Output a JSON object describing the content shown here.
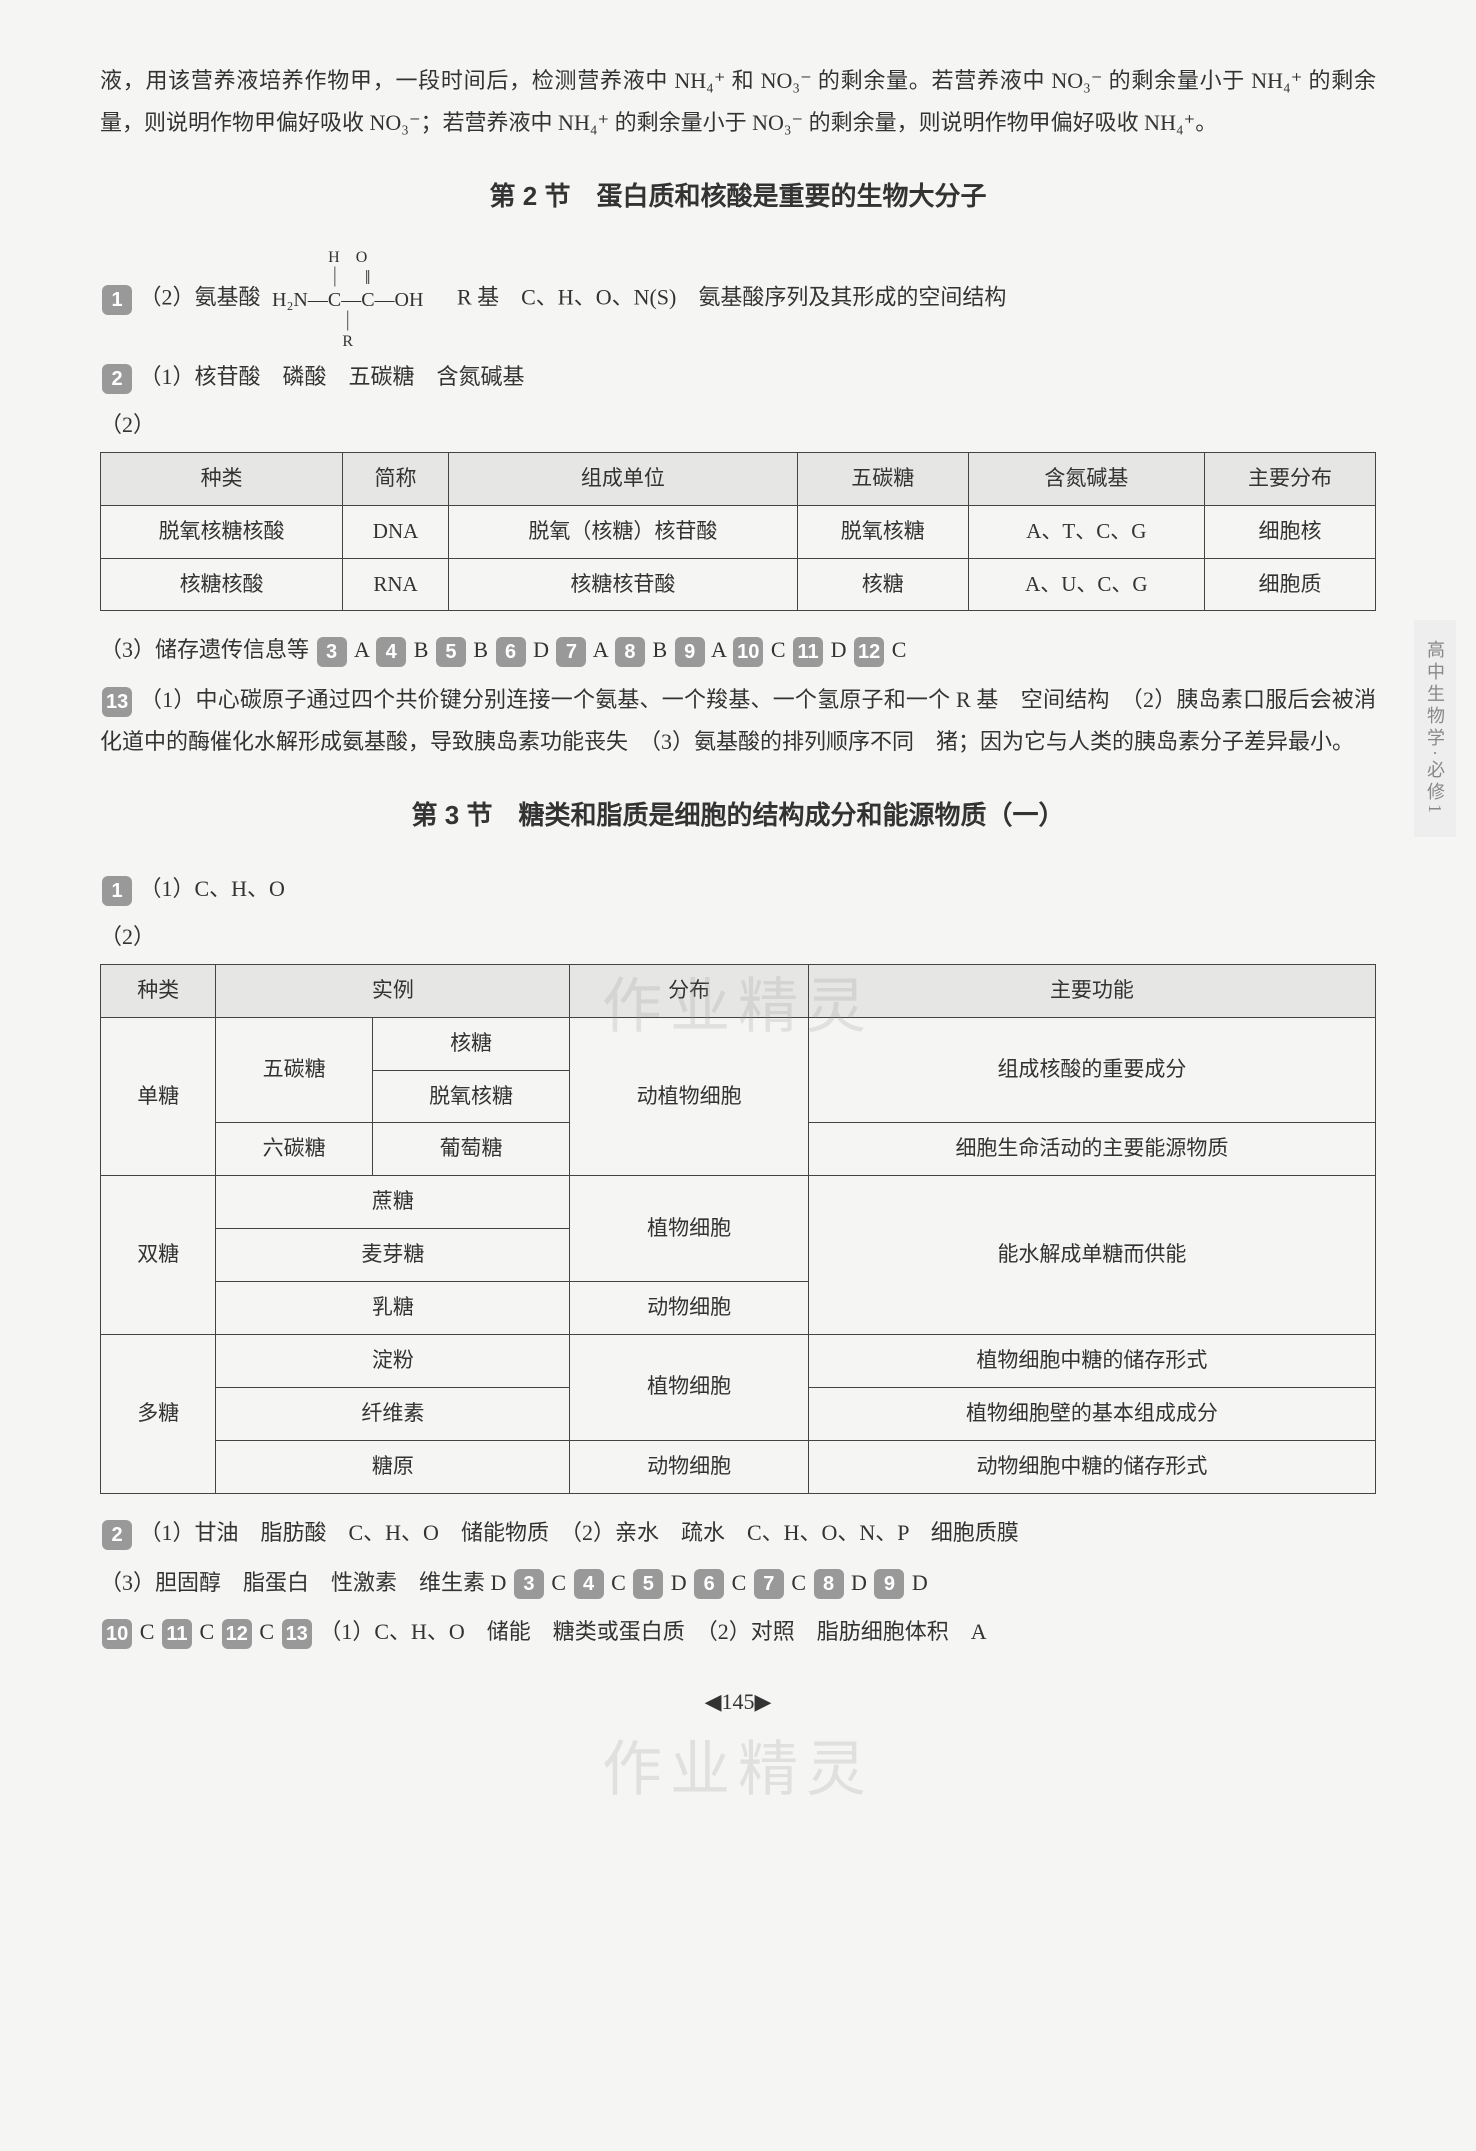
{
  "intro": "液，用该营养液培养作物甲，一段时间后，检测营养液中 NH₄⁺ 和 NO₃⁻ 的剩余量。若营养液中 NO₃⁻ 的剩余量小于 NH₄⁺ 的剩余量，则说明作物甲偏好吸收 NO₃⁻；若营养液中 NH₄⁺ 的剩余量小于 NO₃⁻ 的剩余量，则说明作物甲偏好吸收 NH₄⁺。",
  "sec2": {
    "title": "第 2 节　蛋白质和核酸是重要的生物大分子",
    "q1": {
      "badge": "1",
      "label": "（2）氨基酸",
      "form_top": "H　O",
      "form_mid": "H₂N—C—C—OH",
      "form_bot": "R",
      "after": "　R 基　C、H、O、N(S)　氨基酸序列及其形成的空间结构"
    },
    "q2_badge": "2",
    "q2_1": "（1）核苷酸　磷酸　五碳糖　含氮碱基",
    "q2_2_label": "（2）",
    "table1": {
      "headers": [
        "种类",
        "简称",
        "组成单位",
        "五碳糖",
        "含氮碱基",
        "主要分布"
      ],
      "rows": [
        [
          "脱氧核糖核酸",
          "DNA",
          "脱氧（核糖）核苷酸",
          "脱氧核糖",
          "A、T、C、G",
          "细胞核"
        ],
        [
          "核糖核酸",
          "RNA",
          "核糖核苷酸",
          "核糖",
          "A、U、C、G",
          "细胞质"
        ]
      ]
    },
    "q2_3": "（3）储存遗传信息等",
    "ans": [
      {
        "n": "3",
        "v": "A"
      },
      {
        "n": "4",
        "v": "B"
      },
      {
        "n": "5",
        "v": "B"
      },
      {
        "n": "6",
        "v": "D"
      },
      {
        "n": "7",
        "v": "A"
      },
      {
        "n": "8",
        "v": "B"
      },
      {
        "n": "9",
        "v": "A"
      },
      {
        "n": "10",
        "v": "C"
      },
      {
        "n": "11",
        "v": "D"
      },
      {
        "n": "12",
        "v": "C"
      }
    ],
    "q13_badge": "13",
    "q13": "（1）中心碳原子通过四个共价键分别连接一个氨基、一个羧基、一个氢原子和一个 R 基　空间结构　（2）胰岛素口服后会被消化道中的酶催化水解形成氨基酸，导致胰岛素功能丧失　（3）氨基酸的排列顺序不同　猪；因为它与人类的胰岛素分子差异最小。"
  },
  "sec3": {
    "title": "第 3 节　糖类和脂质是细胞的结构成分和能源物质（一）",
    "q1_badge": "1",
    "q1_1": "（1）C、H、O",
    "q1_2_label": "（2）",
    "table2": {
      "headers": [
        "种类",
        "实例",
        "",
        "分布",
        "主要功能"
      ],
      "r1": [
        "单糖",
        "五碳糖",
        "核糖",
        "动植物细胞",
        "组成核酸的重要成分"
      ],
      "r2": [
        "",
        "",
        "脱氧核糖",
        "",
        ""
      ],
      "r3": [
        "",
        "六碳糖",
        "葡萄糖",
        "",
        "细胞生命活动的主要能源物质"
      ],
      "r4": [
        "双糖",
        "蔗糖",
        "",
        "植物细胞",
        "能水解成单糖而供能"
      ],
      "r5": [
        "",
        "麦芽糖",
        "",
        "",
        ""
      ],
      "r6": [
        "",
        "乳糖",
        "",
        "动物细胞",
        ""
      ],
      "r7": [
        "多糖",
        "淀粉",
        "",
        "植物细胞",
        "植物细胞中糖的储存形式"
      ],
      "r8": [
        "",
        "纤维素",
        "",
        "",
        "植物细胞壁的基本组成成分"
      ],
      "r9": [
        "",
        "糖原",
        "",
        "动物细胞",
        "动物细胞中糖的储存形式"
      ]
    },
    "q2_badge": "2",
    "q2_line1": "（1）甘油　脂肪酸　C、H、O　储能物质　（2）亲水　疏水　C、H、O、N、P　细胞质膜",
    "q2_line2_pre": "（3）胆固醇　脂蛋白　性激素　维生素 D",
    "ans2": [
      {
        "n": "3",
        "v": "C"
      },
      {
        "n": "4",
        "v": "C"
      },
      {
        "n": "5",
        "v": "D"
      },
      {
        "n": "6",
        "v": "C"
      },
      {
        "n": "7",
        "v": "C"
      },
      {
        "n": "8",
        "v": "D"
      },
      {
        "n": "9",
        "v": "D"
      }
    ],
    "ans3_pre": [
      {
        "n": "10",
        "v": "C"
      },
      {
        "n": "11",
        "v": "C"
      },
      {
        "n": "12",
        "v": "C"
      }
    ],
    "q13_badge": "13",
    "q13": "（1）C、H、O　储能　糖类或蛋白质　（2）对照　脂肪细胞体积　A"
  },
  "sidebar": "高中生物学·必修1",
  "pagenum": "145",
  "watermark": "作业精灵"
}
